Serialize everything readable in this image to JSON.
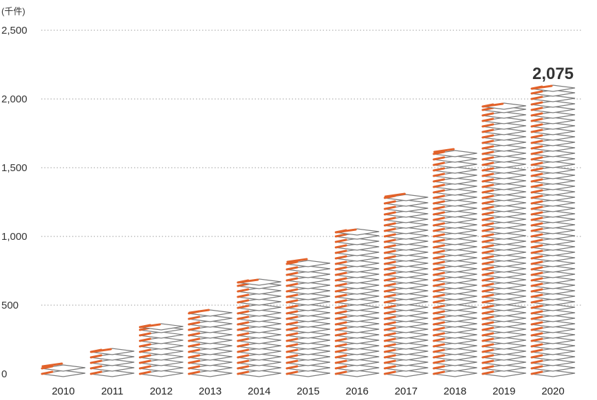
{
  "chart_data": {
    "type": "bar",
    "unit": "(千件)",
    "categories": [
      "2010",
      "2011",
      "2012",
      "2013",
      "2014",
      "2015",
      "2016",
      "2017",
      "2018",
      "2019",
      "2020"
    ],
    "values": [
      55,
      160,
      340,
      445,
      665,
      815,
      1030,
      1290,
      1615,
      1945,
      2075
    ],
    "yticks": [
      "0",
      "500",
      "1,000",
      "1,500",
      "2,000",
      "2,500"
    ],
    "ylim": [
      0,
      2500
    ],
    "highlight": {
      "category": "2020",
      "label": "2,075"
    },
    "grid": true
  },
  "colors": {
    "accent": "#e2622a",
    "sheet_stroke": "#7a7a7a",
    "grid": "#9a9a9a"
  },
  "icons": {
    "bar_mark": "stacked-paper-sheets-icon"
  }
}
